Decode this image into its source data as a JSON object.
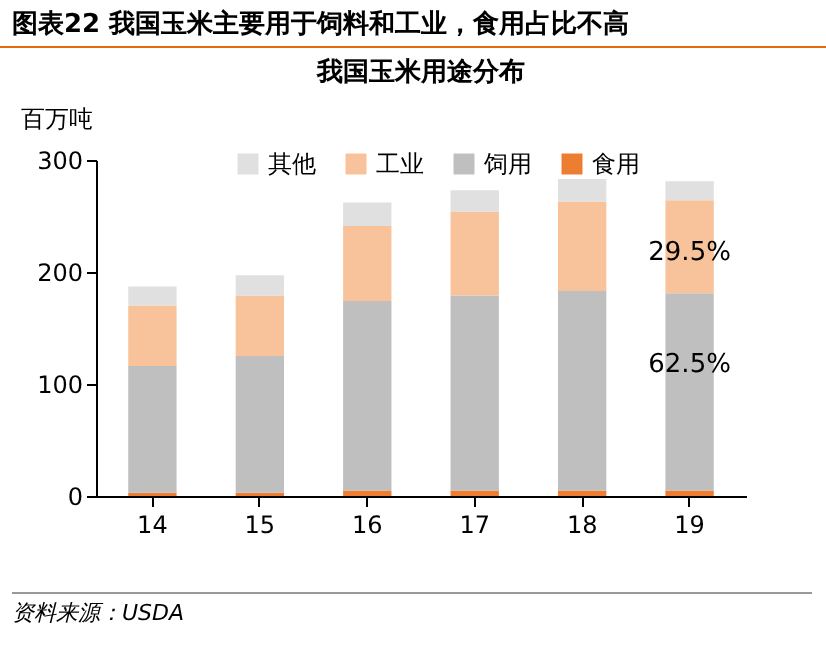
{
  "chart_data": {
    "type": "bar",
    "title": "图表22  我国玉米主要用于饲料和工业，食用占比不高",
    "subtitle": "我国玉米用途分布",
    "ylabel": "百万吨",
    "stacked": true,
    "legend": "top",
    "categories": [
      "14",
      "15",
      "16",
      "17",
      "18",
      "19"
    ],
    "series": [
      {
        "name": "食用",
        "color": "#ed7d31",
        "values": [
          3,
          3,
          5,
          5,
          5,
          5
        ]
      },
      {
        "name": "饲用",
        "color": "#bfbfbf",
        "values": [
          113,
          122,
          169,
          174,
          178,
          176
        ]
      },
      {
        "name": "工业",
        "color": "#f8c39b",
        "values": [
          54,
          54,
          67,
          75,
          80,
          83
        ]
      },
      {
        "name": "其他",
        "color": "#e0e0e0",
        "values": [
          17,
          18,
          21,
          19,
          20,
          17
        ]
      }
    ],
    "ylim": [
      0,
      300
    ],
    "yticks": [
      0,
      100,
      200,
      300
    ],
    "annotations": [
      "29.5%",
      "62.5%",
      "资料来源：USDA"
    ]
  }
}
